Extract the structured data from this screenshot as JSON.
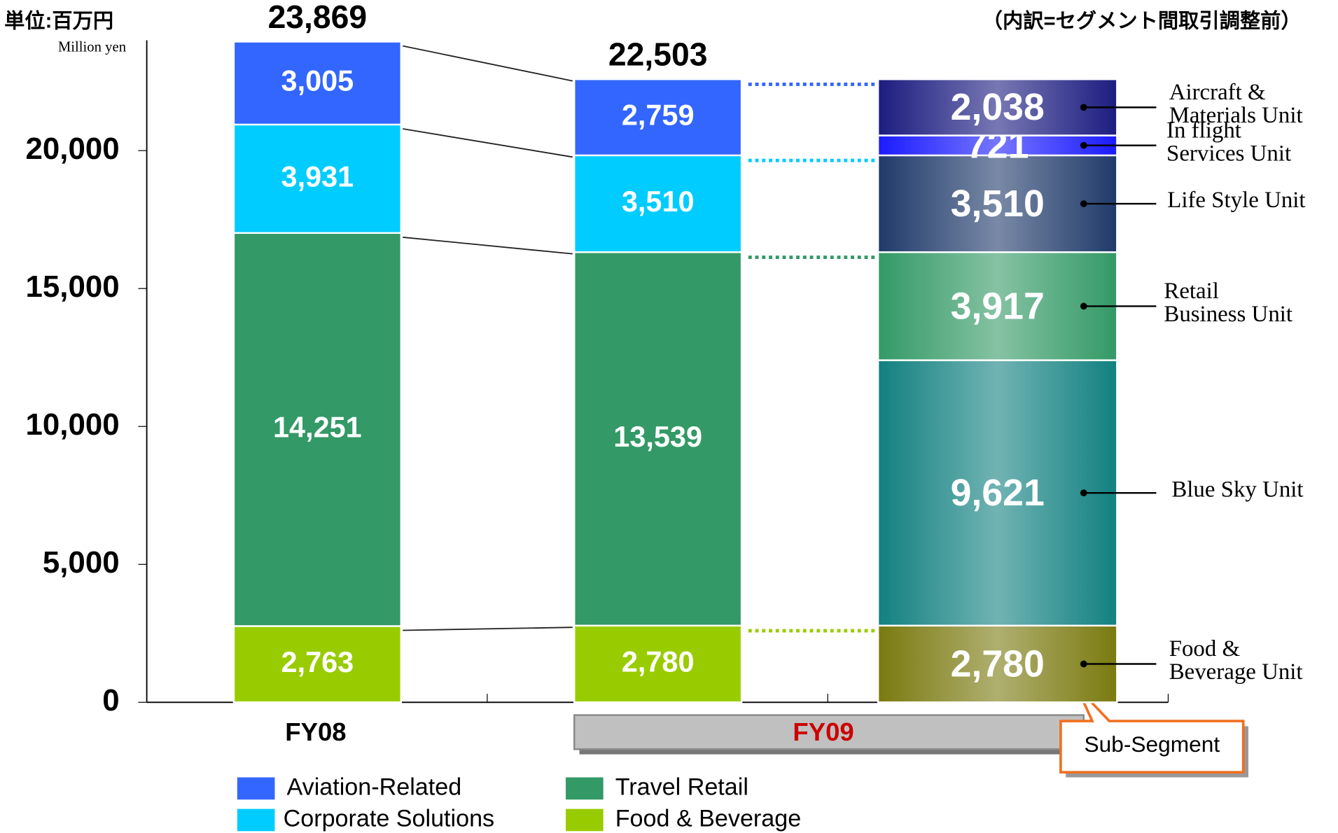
{
  "chart_data": {
    "type": "bar",
    "stacked": true,
    "unit_label": "単位:百万円",
    "unit_label_en": "Million yen",
    "note": "（内訳=セグメント間取引調整前）",
    "categories": [
      "FY08",
      "FY09"
    ],
    "ylim": [
      0,
      24000
    ],
    "yticks": [
      0,
      {
        "value": 5000,
        "label": "5,000"
      },
      {
        "value": 10000,
        "label": "10,000"
      },
      {
        "value": 15000,
        "label": "15,000"
      },
      {
        "value": 20000,
        "label": "20,000"
      }
    ],
    "series": [
      {
        "name": "Aviation-Related",
        "color": "#3366ff",
        "values": [
          3005,
          2759
        ],
        "value_labels": [
          "3,005",
          "2,759"
        ]
      },
      {
        "name": "Corporate Solutions",
        "color": "#00ccff",
        "values": [
          3931,
          3510
        ],
        "value_labels": [
          "3,931",
          "3,510"
        ]
      },
      {
        "name": "Travel Retail",
        "color": "#339966",
        "values": [
          14251,
          13539
        ],
        "value_labels": [
          "14,251",
          "13,539"
        ]
      },
      {
        "name": "Food & Beverage",
        "color": "#99cc00",
        "values": [
          2763,
          2780
        ],
        "value_labels": [
          "2,763",
          "2,780"
        ]
      }
    ],
    "totals": [
      23869,
      22503
    ],
    "total_labels": [
      "23,869",
      "22,503"
    ],
    "sub_segment_label": "Sub-Segment",
    "sub_segments": [
      {
        "name": [
          "Aircraft &",
          "Materials Unit"
        ],
        "color": "#1c1c80",
        "value": 2038,
        "value_label": "2,038"
      },
      {
        "name": [
          "In flight",
          "Services Unit"
        ],
        "color": "#1a1aff",
        "value": 721,
        "value_label": "721"
      },
      {
        "name": [
          "Life Style Unit"
        ],
        "color": "#1f3a6a",
        "value": 3510,
        "value_label": "3,510"
      },
      {
        "name": [
          "Retail",
          "Business Unit"
        ],
        "color": "#339966",
        "value": 3917,
        "value_label": "3,917"
      },
      {
        "name": [
          "Blue Sky Unit"
        ],
        "color": "#128080",
        "value": 9621,
        "value_label": "9,621"
      },
      {
        "name": [
          "Food &",
          "Beverage Unit"
        ],
        "color": "#7a7a10",
        "value": 2780,
        "value_label": "2,780"
      }
    ]
  }
}
